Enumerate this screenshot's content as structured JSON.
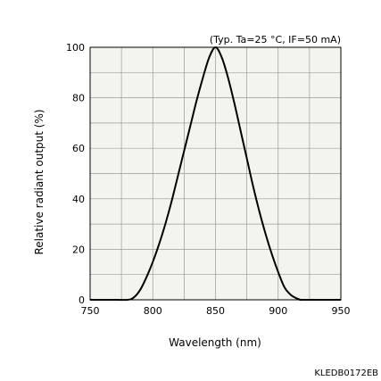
{
  "chart_data": {
    "type": "line",
    "title": "",
    "condition_note": "(Typ. Ta=25 °C, IF=50 mA)",
    "xlabel": "Wavelength (nm)",
    "ylabel": "Relative radiant output (%)",
    "xlim": [
      750,
      950
    ],
    "ylim": [
      0,
      100
    ],
    "x_ticks": [
      750,
      800,
      850,
      900,
      950
    ],
    "y_ticks": [
      0,
      20,
      40,
      60,
      80,
      100
    ],
    "grid": true,
    "legend": "none",
    "doc_code": "KLEDB0172EB",
    "colors": {
      "plot_background": "#f4f4ee",
      "grid": "#9a9a9a",
      "line": "#000000"
    },
    "series": [
      {
        "x": [
          750,
          770,
          780,
          785,
          790,
          795,
          800,
          805,
          810,
          815,
          820,
          825,
          830,
          835,
          840,
          845,
          850,
          855,
          860,
          865,
          870,
          875,
          880,
          885,
          890,
          895,
          900,
          905,
          910,
          915,
          918,
          920,
          950
        ],
        "y": [
          0,
          0,
          0,
          1,
          4,
          9,
          15,
          22,
          30,
          39,
          49,
          59,
          69,
          79,
          88,
          96,
          100,
          96,
          88,
          78,
          67,
          56,
          45,
          35,
          26,
          18,
          11,
          5,
          2,
          0.5,
          0,
          0,
          0
        ]
      }
    ]
  }
}
